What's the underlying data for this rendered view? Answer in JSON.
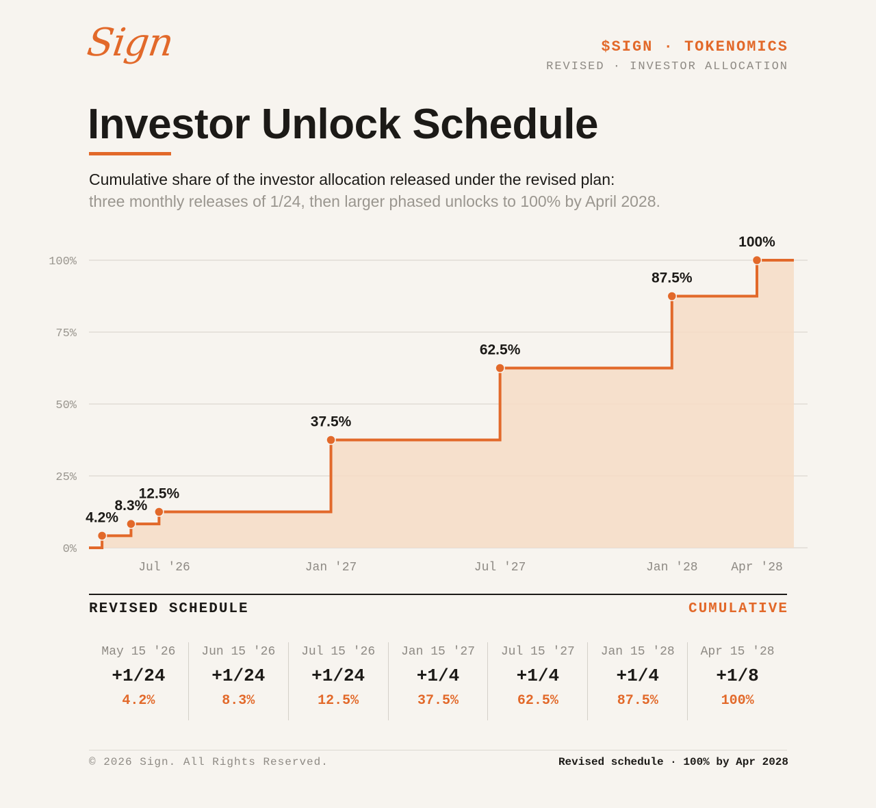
{
  "brand": {
    "logo_text": "Sign",
    "tag_main": "$SIGN · TOKENOMICS",
    "tag_sub": "REVISED · INVESTOR ALLOCATION"
  },
  "header": {
    "title": "Investor Unlock Schedule",
    "subtitle_line1": "Cumulative share of the investor allocation released under the revised plan:",
    "subtitle_line2": "three monthly releases of 1/24, then larger phased unlocks to 100% by April 2028."
  },
  "colors": {
    "accent": "#e2692a",
    "fill": "#f6dcc6",
    "text": "#1c1a17",
    "muted": "#8e8a84",
    "background": "#f7f4ef",
    "grid": "#e0dcd5"
  },
  "chart_data": {
    "type": "area",
    "title": "",
    "xlabel": "",
    "ylabel": "",
    "ylim": [
      0,
      100
    ],
    "yticks": [
      "0%",
      "25%",
      "50%",
      "75%",
      "100%"
    ],
    "xticks": [
      "Jul '26",
      "Jan '27",
      "Jul '27",
      "Jan '28",
      "Apr '28"
    ],
    "grid": true,
    "series": [
      {
        "x": [
          "2026-05-15",
          "2026-06-15",
          "2026-07-15",
          "2027-01-15",
          "2027-07-15",
          "2028-01-15",
          "2028-04-15"
        ],
        "values": [
          4.2,
          8.3,
          12.5,
          37.5,
          62.5,
          87.5,
          100
        ],
        "labels": [
          "4.2%",
          "8.3%",
          "12.5%",
          "37.5%",
          "62.5%",
          "87.5%",
          "100%"
        ]
      }
    ]
  },
  "schedule": {
    "title": "REVISED SCHEDULE",
    "right_label": "CUMULATIVE",
    "items": [
      {
        "date": "May 15 '26",
        "fraction": "+1/24",
        "cumulative": "4.2%"
      },
      {
        "date": "Jun 15 '26",
        "fraction": "+1/24",
        "cumulative": "8.3%"
      },
      {
        "date": "Jul 15 '26",
        "fraction": "+1/24",
        "cumulative": "12.5%"
      },
      {
        "date": "Jan 15 '27",
        "fraction": "+1/4",
        "cumulative": "37.5%"
      },
      {
        "date": "Jul 15 '27",
        "fraction": "+1/4",
        "cumulative": "62.5%"
      },
      {
        "date": "Jan 15 '28",
        "fraction": "+1/4",
        "cumulative": "87.5%"
      },
      {
        "date": "Apr 15 '28",
        "fraction": "+1/8",
        "cumulative": "100%"
      }
    ]
  },
  "footer": {
    "left": "© 2026 Sign. All Rights Reserved.",
    "right": "Revised schedule · 100% by Apr 2028"
  }
}
